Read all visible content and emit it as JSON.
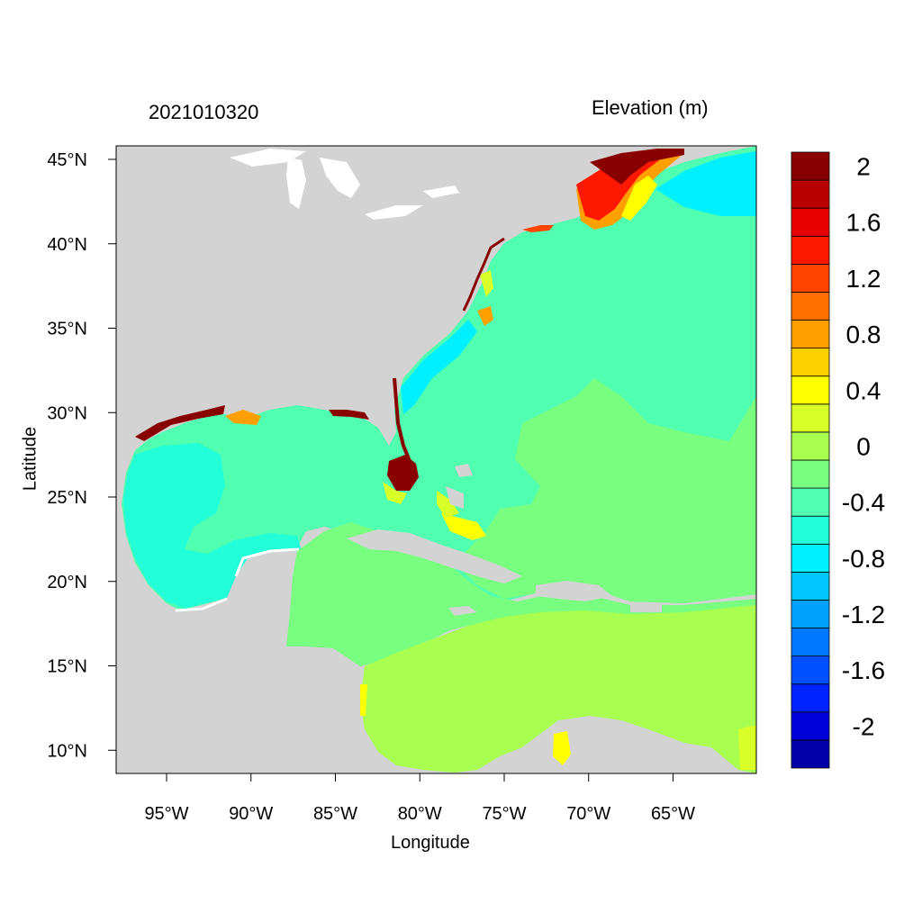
{
  "figure": {
    "left_title": "2021010320",
    "right_title": "Elevation (m)",
    "x_axis_title": "Longitude",
    "y_axis_title": "Latitude"
  },
  "map": {
    "lon_range": [
      -98.0,
      -60.0
    ],
    "lat_range": [
      8.5,
      46.0
    ],
    "x_ticks": [
      {
        "value": -95,
        "label": "95°W"
      },
      {
        "value": -90,
        "label": "90°W"
      },
      {
        "value": -85,
        "label": "85°W"
      },
      {
        "value": -80,
        "label": "80°W"
      },
      {
        "value": -75,
        "label": "75°W"
      },
      {
        "value": -70,
        "label": "70°W"
      },
      {
        "value": -65,
        "label": "65°W"
      }
    ],
    "y_ticks": [
      {
        "value": 45,
        "label": "45°N"
      },
      {
        "value": 40,
        "label": "40°N"
      },
      {
        "value": 35,
        "label": "35°N"
      },
      {
        "value": 30,
        "label": "30°N"
      },
      {
        "value": 25,
        "label": "25°N"
      },
      {
        "value": 20,
        "label": "20°N"
      },
      {
        "value": 15,
        "label": "15°N"
      },
      {
        "value": 10,
        "label": "10°N"
      }
    ],
    "land_color": "#d3d3d3",
    "lake_color": "#ffffff"
  },
  "colorbar": {
    "colors": [
      "#0000a8",
      "#0000d8",
      "#0022ff",
      "#0050ff",
      "#0078ff",
      "#00a0ff",
      "#00c8ff",
      "#00f0ff",
      "#22ffd8",
      "#50ffb0",
      "#78ff80",
      "#a8ff50",
      "#d8ff28",
      "#ffff00",
      "#ffd000",
      "#ffa000",
      "#ff7000",
      "#ff4400",
      "#ff1800",
      "#e80000",
      "#b80000",
      "#880000"
    ],
    "labels": [
      {
        "index": 1.5,
        "text": "-2"
      },
      {
        "index": 3.5,
        "text": "-1.6"
      },
      {
        "index": 5.5,
        "text": "-1.2"
      },
      {
        "index": 7.5,
        "text": "-0.8"
      },
      {
        "index": 9.5,
        "text": "-0.4"
      },
      {
        "index": 11.5,
        "text": "0"
      },
      {
        "index": 13.5,
        "text": "0.4"
      },
      {
        "index": 15.5,
        "text": "0.8"
      },
      {
        "index": 17.5,
        "text": "1.2"
      },
      {
        "index": 19.5,
        "text": "1.6"
      },
      {
        "index": 21.5,
        "text": "2"
      }
    ]
  },
  "field_colors": {
    "ocean_neg02": "#50ffb0",
    "ocean_neg04": "#22ffd8",
    "ocean_neg06": "#00f0ff",
    "ocean_zero": "#78ff80",
    "carib_pos": "#a8ff50",
    "yellow_green": "#d8ff28",
    "yellow": "#ffff00",
    "orange": "#ffa000",
    "red": "#ff1800",
    "dark_red": "#880000"
  }
}
